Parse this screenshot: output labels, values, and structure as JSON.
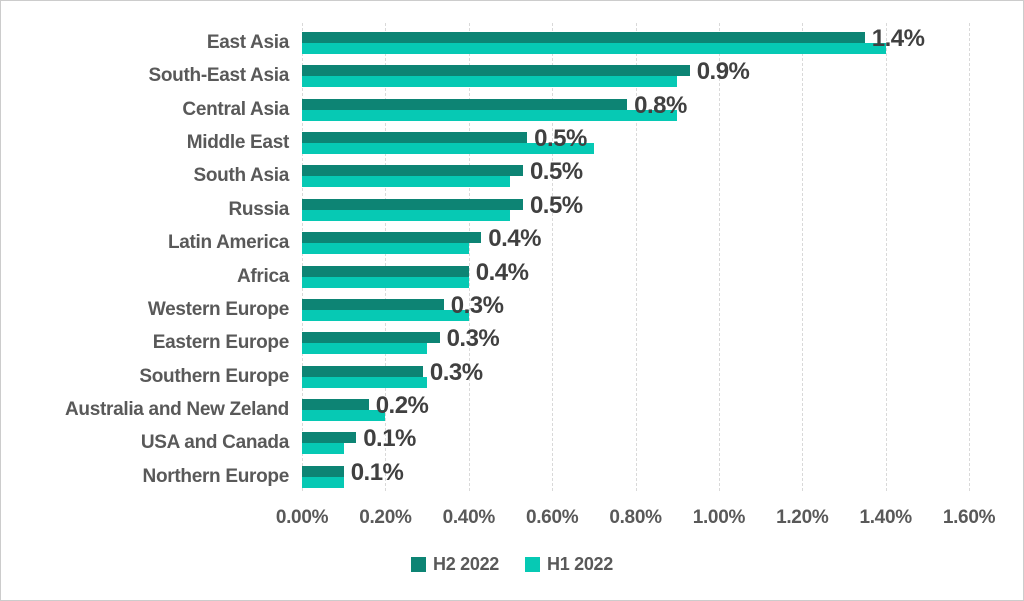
{
  "chart_data": {
    "type": "bar",
    "orientation": "horizontal",
    "title": "",
    "xlabel": "",
    "ylabel": "",
    "grid": true,
    "categories": [
      "East Asia",
      "South-East Asia",
      "Central Asia",
      "Middle East",
      "South Asia",
      "Russia",
      "Latin America",
      "Africa",
      "Western Europe",
      "Eastern Europe",
      "Southern Europe",
      "Australia and New Zeland",
      "USA and Canada",
      "Northern Europe"
    ],
    "series": [
      {
        "name": "H2 2022",
        "color": "#0d8474",
        "values": [
          1.35,
          0.93,
          0.78,
          0.54,
          0.53,
          0.53,
          0.43,
          0.4,
          0.34,
          0.33,
          0.29,
          0.16,
          0.13,
          0.1
        ]
      },
      {
        "name": "H1 2022",
        "color": "#06c9b4",
        "values": [
          1.4,
          0.9,
          0.9,
          0.7,
          0.5,
          0.5,
          0.4,
          0.4,
          0.4,
          0.3,
          0.3,
          0.2,
          0.1,
          0.1
        ]
      }
    ],
    "data_labels": [
      "1.4%",
      "0.9%",
      "0.8%",
      "0.5%",
      "0.5%",
      "0.5%",
      "0.4%",
      "0.4%",
      "0.3%",
      "0.3%",
      "0.3%",
      "0.2%",
      "0.1%",
      "0.1%"
    ],
    "data_labels_on_series": "H2 2022",
    "axis": {
      "min": 0,
      "max": 1.6,
      "tick_step": 0.2,
      "tick_labels": [
        "0.00%",
        "0.20%",
        "0.40%",
        "0.60%",
        "0.80%",
        "1.00%",
        "1.20%",
        "1.40%",
        "1.60%"
      ]
    },
    "legend": {
      "position": "bottom",
      "entries": [
        {
          "label": "H2 2022",
          "color": "#0d8474"
        },
        {
          "label": "H1 2022",
          "color": "#06c9b4"
        }
      ]
    }
  },
  "colors": {
    "background": "#ffffff",
    "gridline": "#d9d9d9",
    "category_text": "#595959",
    "tick_text": "#595959",
    "data_label_text": "#404040",
    "legend_text": "#595959",
    "border": "#cccccc"
  }
}
